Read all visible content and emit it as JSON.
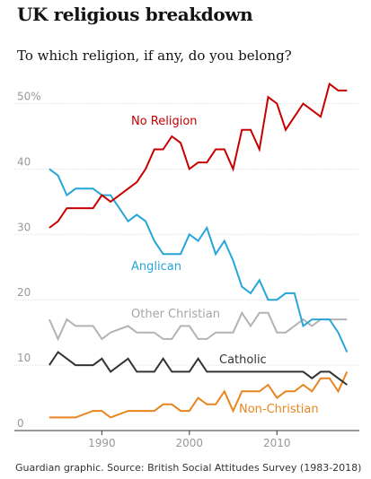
{
  "header": {
    "title": "UK religious breakdown",
    "subtitle": "To which religion, if any, do you belong?"
  },
  "footer": {
    "source": "Guardian graphic. Source: British Social Attitudes Survey (1983-2018)"
  },
  "chart_data": {
    "type": "line",
    "x": [
      1984,
      1985,
      1986,
      1987,
      1989,
      1990,
      1991,
      1993,
      1994,
      1995,
      1996,
      1997,
      1998,
      1999,
      2000,
      2001,
      2002,
      2003,
      2004,
      2005,
      2006,
      2007,
      2008,
      2009,
      2010,
      2011,
      2012,
      2013,
      2014,
      2015,
      2016,
      2017,
      2018
    ],
    "xticks": [
      "1990",
      "2000",
      "2010"
    ],
    "xtick_values": [
      1990,
      2000,
      2010
    ],
    "xlim": [
      1983.5,
      2019
    ],
    "ylim": [
      0,
      53.5
    ],
    "yticks": [
      {
        "value": 0,
        "label": "0"
      },
      {
        "value": 10,
        "label": "10"
      },
      {
        "value": 20,
        "label": "20"
      },
      {
        "value": 30,
        "label": "30"
      },
      {
        "value": 40,
        "label": "40"
      },
      {
        "value": 50,
        "label": "50%"
      }
    ],
    "grid": true,
    "series": [
      {
        "name": "No Religion",
        "color": "#c70000",
        "values": [
          31,
          32,
          34,
          34,
          34,
          36,
          35,
          37,
          38,
          40,
          43,
          43,
          45,
          44,
          40,
          41,
          41,
          43,
          43,
          40,
          46,
          46,
          43,
          51,
          50,
          46,
          48,
          50,
          49,
          48,
          53,
          52,
          52
        ]
      },
      {
        "name": "Anglican",
        "color": "#27a6d8",
        "values": [
          40,
          39,
          36,
          37,
          37,
          36,
          36,
          32,
          33,
          32,
          29,
          27,
          27,
          27,
          30,
          29,
          31,
          27,
          29,
          26,
          22,
          21,
          23,
          20,
          20,
          21,
          21,
          16,
          17,
          17,
          17,
          15,
          12
        ]
      },
      {
        "name": "Other Christian",
        "color": "#b3b3b3",
        "values": [
          17,
          14,
          17,
          16,
          16,
          14,
          15,
          16,
          15,
          15,
          15,
          14,
          14,
          16,
          16,
          14,
          14,
          15,
          15,
          15,
          18,
          16,
          18,
          18,
          15,
          15,
          16,
          17,
          16,
          17,
          17,
          17,
          17
        ]
      },
      {
        "name": "Catholic",
        "color": "#333333",
        "values": [
          10,
          12,
          11,
          10,
          10,
          11,
          9,
          11,
          9,
          9,
          9,
          11,
          9,
          9,
          9,
          11,
          9,
          9,
          9,
          9,
          9,
          9,
          9,
          9,
          9,
          9,
          9,
          9,
          8,
          9,
          9,
          8,
          7
        ]
      },
      {
        "name": "Non-Christian",
        "color": "#e8851e",
        "values": [
          2,
          2,
          2,
          2,
          3,
          3,
          2,
          3,
          3,
          3,
          3,
          4,
          4,
          3,
          3,
          5,
          4,
          4,
          6,
          3,
          6,
          6,
          6,
          7,
          5,
          6,
          6,
          7,
          6,
          8,
          8,
          6,
          9
        ]
      }
    ]
  }
}
